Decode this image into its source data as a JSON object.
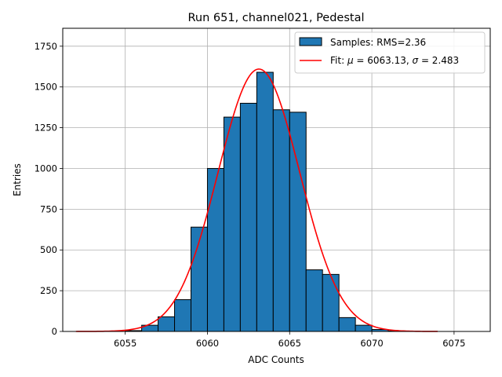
{
  "chart_data": {
    "type": "bar",
    "title": "Run 651, channel021, Pedestal",
    "xlabel": "ADC Counts",
    "ylabel": "Entries",
    "xlim": [
      6051.2,
      6077.2
    ],
    "ylim": [
      0,
      1860
    ],
    "xticks": [
      6055,
      6060,
      6065,
      6070,
      6075
    ],
    "yticks": [
      0,
      250,
      500,
      750,
      1000,
      1250,
      1500,
      1750
    ],
    "grid": true,
    "legend_position": "top-right",
    "bin_width": 1,
    "bins": [
      {
        "x": 6055,
        "value": 5
      },
      {
        "x": 6056,
        "value": 38
      },
      {
        "x": 6057,
        "value": 90
      },
      {
        "x": 6058,
        "value": 195
      },
      {
        "x": 6059,
        "value": 640
      },
      {
        "x": 6060,
        "value": 1000
      },
      {
        "x": 6061,
        "value": 1315
      },
      {
        "x": 6062,
        "value": 1400
      },
      {
        "x": 6063,
        "value": 1590
      },
      {
        "x": 6064,
        "value": 1360
      },
      {
        "x": 6065,
        "value": 1345
      },
      {
        "x": 6066,
        "value": 378
      },
      {
        "x": 6067,
        "value": 350
      },
      {
        "x": 6068,
        "value": 85
      },
      {
        "x": 6069,
        "value": 38
      },
      {
        "x": 6070,
        "value": 12
      },
      {
        "x": 6071,
        "value": 3
      }
    ],
    "fit": {
      "type": "gaussian",
      "mu": 6063.13,
      "sigma": 2.483,
      "amplitude": 1610,
      "x_range": [
        6052,
        6074
      ]
    },
    "legend": {
      "samples_label": "Samples: RMS=2.36",
      "fit_label_prefix": "Fit: ",
      "fit_label_mu_sym": "μ",
      "fit_label_mu_val": " = 6063.13, ",
      "fit_label_sigma_sym": "σ",
      "fit_label_sigma_val": " = 2.483"
    },
    "colors": {
      "bar": "#1f77b4",
      "fit": "#ff0000"
    }
  }
}
